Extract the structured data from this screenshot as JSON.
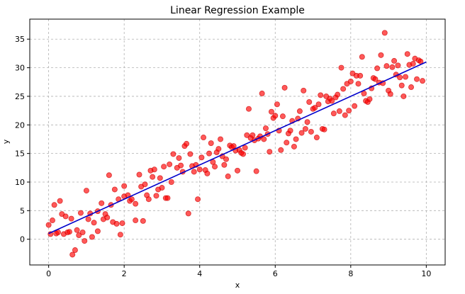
{
  "chart_data": {
    "type": "scatter",
    "title": "Linear Regression Example",
    "xlabel": "x",
    "ylabel": "y",
    "xlim": [
      -0.5,
      10.5
    ],
    "ylim": [
      -4.5,
      38.5
    ],
    "xticks": [
      0,
      2,
      4,
      6,
      8,
      10
    ],
    "yticks": [
      0,
      5,
      10,
      15,
      20,
      25,
      30,
      35
    ],
    "xtick_labels": [
      "0",
      "2",
      "4",
      "6",
      "8",
      "10"
    ],
    "ytick_labels": [
      "0",
      "5",
      "10",
      "15",
      "20",
      "25",
      "30",
      "35"
    ],
    "grid": true,
    "legend": null,
    "colors": {
      "points": "#ff0000",
      "points_edge": "#cc0000",
      "line": "#0000cc",
      "grid": "#b0b0b0"
    },
    "series": [
      {
        "kind": "scatter",
        "points": [
          [
            0.0,
            2.5
          ],
          [
            0.05,
            0.9
          ],
          [
            0.1,
            3.3
          ],
          [
            0.15,
            6.0
          ],
          [
            0.2,
            1.0
          ],
          [
            0.25,
            1.2
          ],
          [
            0.3,
            6.7
          ],
          [
            0.35,
            4.4
          ],
          [
            0.4,
            0.9
          ],
          [
            0.45,
            4.0
          ],
          [
            0.5,
            1.2
          ],
          [
            0.55,
            1.3
          ],
          [
            0.6,
            3.6
          ],
          [
            0.63,
            -2.7
          ],
          [
            0.7,
            -1.9
          ],
          [
            0.75,
            1.6
          ],
          [
            0.8,
            0.7
          ],
          [
            0.85,
            4.6
          ],
          [
            0.9,
            1.2
          ],
          [
            0.95,
            -0.3
          ],
          [
            1.0,
            8.5
          ],
          [
            1.05,
            3.5
          ],
          [
            1.1,
            4.5
          ],
          [
            1.15,
            0.4
          ],
          [
            1.2,
            2.9
          ],
          [
            1.3,
            4.9
          ],
          [
            1.3,
            1.4
          ],
          [
            1.4,
            6.3
          ],
          [
            1.45,
            3.5
          ],
          [
            1.5,
            4.4
          ],
          [
            1.55,
            3.8
          ],
          [
            1.6,
            11.2
          ],
          [
            1.65,
            6.0
          ],
          [
            1.7,
            3.0
          ],
          [
            1.75,
            8.7
          ],
          [
            1.8,
            2.7
          ],
          [
            1.85,
            7.0
          ],
          [
            1.9,
            0.8
          ],
          [
            1.95,
            2.8
          ],
          [
            2.0,
            7.5
          ],
          [
            2.0,
            9.3
          ],
          [
            2.1,
            7.7
          ],
          [
            2.15,
            6.7
          ],
          [
            2.2,
            7.0
          ],
          [
            2.3,
            6.2
          ],
          [
            2.3,
            3.3
          ],
          [
            2.4,
            11.3
          ],
          [
            2.45,
            9.2
          ],
          [
            2.5,
            3.2
          ],
          [
            2.55,
            9.6
          ],
          [
            2.6,
            7.7
          ],
          [
            2.65,
            7.0
          ],
          [
            2.7,
            12.0
          ],
          [
            2.75,
            10.9
          ],
          [
            2.8,
            12.2
          ],
          [
            2.85,
            7.6
          ],
          [
            2.9,
            8.7
          ],
          [
            2.95,
            10.7
          ],
          [
            3.0,
            9.0
          ],
          [
            3.05,
            12.7
          ],
          [
            3.1,
            7.2
          ],
          [
            3.15,
            7.2
          ],
          [
            3.2,
            13.1
          ],
          [
            3.25,
            10.0
          ],
          [
            3.3,
            14.9
          ],
          [
            3.4,
            12.5
          ],
          [
            3.45,
            14.2
          ],
          [
            3.5,
            12.9
          ],
          [
            3.55,
            11.8
          ],
          [
            3.6,
            16.3
          ],
          [
            3.65,
            16.7
          ],
          [
            3.7,
            4.5
          ],
          [
            3.75,
            14.9
          ],
          [
            3.8,
            12.8
          ],
          [
            3.85,
            11.8
          ],
          [
            3.9,
            13.0
          ],
          [
            3.95,
            7.0
          ],
          [
            4.0,
            12.2
          ],
          [
            4.05,
            14.3
          ],
          [
            4.1,
            17.8
          ],
          [
            4.15,
            12.1
          ],
          [
            4.2,
            11.5
          ],
          [
            4.25,
            15.0
          ],
          [
            4.3,
            16.8
          ],
          [
            4.35,
            13.5
          ],
          [
            4.4,
            12.7
          ],
          [
            4.45,
            15.2
          ],
          [
            4.5,
            15.8
          ],
          [
            4.55,
            17.5
          ],
          [
            4.6,
            14.5
          ],
          [
            4.65,
            13.0
          ],
          [
            4.7,
            14.0
          ],
          [
            4.75,
            11.0
          ],
          [
            4.8,
            16.4
          ],
          [
            4.85,
            16.1
          ],
          [
            4.9,
            16.3
          ],
          [
            4.95,
            15.5
          ],
          [
            5.0,
            12.0
          ],
          [
            5.05,
            15.6
          ],
          [
            5.1,
            15.1
          ],
          [
            5.15,
            14.9
          ],
          [
            5.2,
            16.0
          ],
          [
            5.25,
            18.2
          ],
          [
            5.3,
            22.8
          ],
          [
            5.35,
            17.7
          ],
          [
            5.4,
            18.2
          ],
          [
            5.45,
            17.3
          ],
          [
            5.5,
            11.9
          ],
          [
            5.55,
            17.6
          ],
          [
            5.6,
            18.0
          ],
          [
            5.65,
            25.5
          ],
          [
            5.7,
            17.5
          ],
          [
            5.75,
            19.4
          ],
          [
            5.8,
            18.4
          ],
          [
            5.85,
            15.3
          ],
          [
            5.9,
            22.3
          ],
          [
            5.95,
            21.2
          ],
          [
            6.0,
            21.6
          ],
          [
            6.05,
            23.6
          ],
          [
            6.1,
            19.0
          ],
          [
            6.15,
            15.6
          ],
          [
            6.2,
            21.5
          ],
          [
            6.25,
            26.5
          ],
          [
            6.3,
            16.9
          ],
          [
            6.35,
            18.5
          ],
          [
            6.4,
            19.0
          ],
          [
            6.45,
            20.7
          ],
          [
            6.5,
            16.2
          ],
          [
            6.55,
            17.5
          ],
          [
            6.6,
            21.1
          ],
          [
            6.65,
            22.4
          ],
          [
            6.7,
            18.6
          ],
          [
            6.75,
            26.0
          ],
          [
            6.8,
            19.3
          ],
          [
            6.85,
            20.5
          ],
          [
            6.9,
            24.0
          ],
          [
            6.95,
            18.8
          ],
          [
            7.0,
            22.8
          ],
          [
            7.05,
            23.0
          ],
          [
            7.1,
            17.8
          ],
          [
            7.15,
            23.6
          ],
          [
            7.2,
            25.2
          ],
          [
            7.25,
            19.3
          ],
          [
            7.3,
            19.2
          ],
          [
            7.35,
            25.0
          ],
          [
            7.4,
            24.1
          ],
          [
            7.45,
            24.6
          ],
          [
            7.5,
            24.2
          ],
          [
            7.55,
            22.0
          ],
          [
            7.6,
            24.8
          ],
          [
            7.65,
            25.3
          ],
          [
            7.7,
            22.4
          ],
          [
            7.75,
            30.0
          ],
          [
            7.8,
            26.3
          ],
          [
            7.85,
            21.7
          ],
          [
            7.9,
            27.2
          ],
          [
            7.95,
            22.5
          ],
          [
            8.0,
            27.6
          ],
          [
            8.05,
            29.0
          ],
          [
            8.1,
            23.3
          ],
          [
            8.15,
            28.6
          ],
          [
            8.2,
            27.2
          ],
          [
            8.25,
            28.6
          ],
          [
            8.3,
            31.9
          ],
          [
            8.35,
            25.5
          ],
          [
            8.4,
            24.2
          ],
          [
            8.45,
            24.0
          ],
          [
            8.5,
            24.5
          ],
          [
            8.55,
            26.4
          ],
          [
            8.6,
            28.2
          ],
          [
            8.65,
            28.0
          ],
          [
            8.7,
            29.9
          ],
          [
            8.75,
            27.4
          ],
          [
            8.8,
            32.2
          ],
          [
            8.85,
            27.3
          ],
          [
            8.9,
            36.1
          ],
          [
            8.95,
            30.3
          ],
          [
            9.0,
            26.0
          ],
          [
            9.05,
            25.4
          ],
          [
            9.1,
            30.1
          ],
          [
            9.15,
            31.2
          ],
          [
            9.2,
            28.8
          ],
          [
            9.25,
            30.4
          ],
          [
            9.3,
            28.3
          ],
          [
            9.35,
            26.9
          ],
          [
            9.4,
            25.0
          ],
          [
            9.45,
            28.4
          ],
          [
            9.5,
            32.4
          ],
          [
            9.55,
            30.5
          ],
          [
            9.6,
            26.6
          ],
          [
            9.65,
            30.7
          ],
          [
            9.7,
            31.6
          ],
          [
            9.75,
            28.0
          ],
          [
            9.8,
            31.3
          ],
          [
            9.85,
            31.1
          ],
          [
            9.9,
            27.7
          ]
        ]
      },
      {
        "kind": "line",
        "points": [
          [
            0,
            1.0
          ],
          [
            10,
            31.0
          ]
        ]
      }
    ]
  }
}
